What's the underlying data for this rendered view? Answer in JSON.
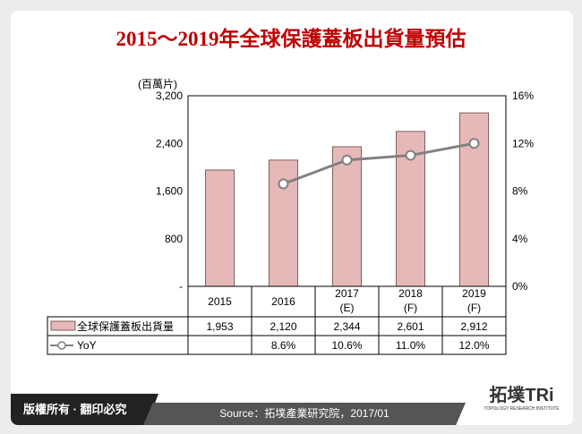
{
  "title": "2015～2019年全球保護蓋板出貨量預估",
  "footer": {
    "copyright": "版權所有 · 翻印必究",
    "source": "Source：拓墣產業研究院，2017/01",
    "logo": "拓墣TRi",
    "logo_sub": "TOPOLOGY RESEARCH INSTITUTE"
  },
  "chart_data": {
    "type": "bar",
    "title": "",
    "ylabel": "(百萬片)",
    "categories": [
      "2015",
      "2016",
      "2017\n(E)",
      "2018\n(F)",
      "2019\n(F)"
    ],
    "ylim": [
      0,
      3200
    ],
    "yticks": [
      "-",
      "800",
      "1,600",
      "2,400",
      "3,200"
    ],
    "y2lim": [
      0,
      16
    ],
    "y2ticks": [
      "0%",
      "4%",
      "8%",
      "12%",
      "16%"
    ],
    "series": [
      {
        "name": "全球保護蓋板出貨量",
        "type": "bar",
        "values": [
          1953,
          2120,
          2344,
          2601,
          2912
        ],
        "labels": [
          "1,953",
          "2,120",
          "2,344",
          "2,601",
          "2,912"
        ],
        "color": "#e6b9b8"
      },
      {
        "name": "YoY",
        "type": "line",
        "axis": "right",
        "values": [
          null,
          8.6,
          10.6,
          11.0,
          12.0
        ],
        "labels": [
          "",
          "8.6%",
          "10.6%",
          "11.0%",
          "12.0%"
        ],
        "color": "#808080"
      }
    ],
    "grid": false,
    "legend": "data-table"
  }
}
